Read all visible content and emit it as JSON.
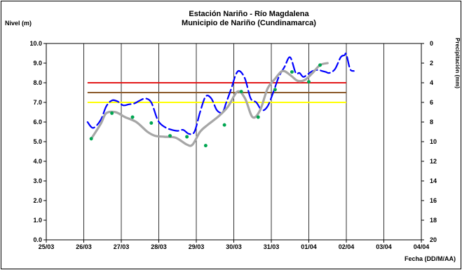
{
  "chart_data": {
    "type": "line",
    "title": "Estación Nariño  - Río Magdalena",
    "subtitle": "Municipio de Nariño (Cundinamarca)",
    "ylabel": "Nivel (m)",
    "xlabel": "Fecha (DD/M/AA)",
    "y2label": "Precipitación (mm)",
    "ylim": [
      0,
      10
    ],
    "yticks": [
      "0.0",
      "1.0",
      "2.0",
      "3.0",
      "4.0",
      "5.0",
      "6.0",
      "7.0",
      "8.0",
      "9.0",
      "10.0"
    ],
    "y2lim": [
      0,
      20
    ],
    "y2_inverted": true,
    "y2ticks": [
      "0",
      "2",
      "4",
      "6",
      "8",
      "10",
      "12",
      "14",
      "16",
      "18",
      "20"
    ],
    "xlim": [
      0,
      10
    ],
    "categories": [
      "25/03",
      "26/03",
      "27/03",
      "28/03",
      "29/03",
      "30/03",
      "31/03",
      "01/04",
      "02/04",
      "03/04",
      "04/04"
    ],
    "grid": true,
    "thresholds": [
      {
        "value": 8.0,
        "color": "#e31a1c",
        "from": 1.1,
        "to": 8.0
      },
      {
        "value": 7.5,
        "color": "#8b5a2b",
        "from": 1.1,
        "to": 8.0
      },
      {
        "value": 7.0,
        "color": "#ffff00",
        "from": 1.1,
        "to": 8.0
      }
    ],
    "series": [
      {
        "style": "dashed",
        "color": "#0000ff",
        "x": [
          1.1,
          1.25,
          1.45,
          1.6,
          1.75,
          1.9,
          2.05,
          2.2,
          2.35,
          2.5,
          2.65,
          2.8,
          2.95,
          3.05,
          3.2,
          3.35,
          3.5,
          3.65,
          3.8,
          3.95,
          4.1,
          4.25,
          4.4,
          4.55,
          4.7,
          4.8,
          4.95,
          5.05,
          5.15,
          5.3,
          5.45,
          5.6,
          5.75,
          5.9,
          6.05,
          6.2,
          6.35,
          6.5,
          6.65,
          6.75,
          6.85,
          6.95,
          7.1,
          7.25,
          7.35,
          7.45,
          7.55,
          7.7,
          7.85,
          7.95,
          8.0,
          8.1,
          8.2
        ],
        "values": [
          6.0,
          5.7,
          6.1,
          6.8,
          7.1,
          7.05,
          6.85,
          6.9,
          6.95,
          7.1,
          7.2,
          7.0,
          6.2,
          5.9,
          5.7,
          5.6,
          5.55,
          5.6,
          5.4,
          5.5,
          6.5,
          7.3,
          7.2,
          6.6,
          6.5,
          7.0,
          7.8,
          8.4,
          8.6,
          8.2,
          7.2,
          7.0,
          6.6,
          6.8,
          7.5,
          8.3,
          8.8,
          9.3,
          8.5,
          8.5,
          8.3,
          8.4,
          8.6,
          8.65,
          8.6,
          8.55,
          8.5,
          8.7,
          9.3,
          9.4,
          9.45,
          8.7,
          8.6
        ]
      },
      {
        "style": "solid",
        "color": "#a6a6a6",
        "x": [
          1.2,
          1.45,
          1.6,
          1.85,
          2.1,
          2.4,
          2.7,
          2.9,
          3.15,
          3.45,
          3.75,
          3.9,
          4.1,
          4.3,
          4.6,
          4.85,
          5.1,
          5.3,
          5.5,
          5.7,
          5.9,
          6.1,
          6.3,
          6.5,
          6.7,
          6.9,
          7.1,
          7.3,
          7.5
        ],
        "values": [
          5.15,
          5.9,
          6.45,
          6.5,
          6.25,
          6.0,
          5.5,
          5.3,
          5.25,
          5.2,
          4.85,
          4.85,
          5.5,
          5.85,
          6.3,
          6.8,
          7.55,
          7.2,
          6.25,
          6.6,
          7.7,
          8.2,
          8.6,
          8.4,
          8.1,
          8.15,
          8.5,
          8.9,
          9.0
        ]
      },
      {
        "style": "points",
        "color": "#00a651",
        "x": [
          1.2,
          1.75,
          2.3,
          2.8,
          3.3,
          3.75,
          4.25,
          4.75,
          5.2,
          5.65,
          6.1,
          6.55,
          7.0,
          7.3
        ],
        "values": [
          5.15,
          6.45,
          6.25,
          5.95,
          5.3,
          5.25,
          4.8,
          5.85,
          7.55,
          6.25,
          7.65,
          8.55,
          8.05,
          8.9
        ]
      }
    ]
  }
}
